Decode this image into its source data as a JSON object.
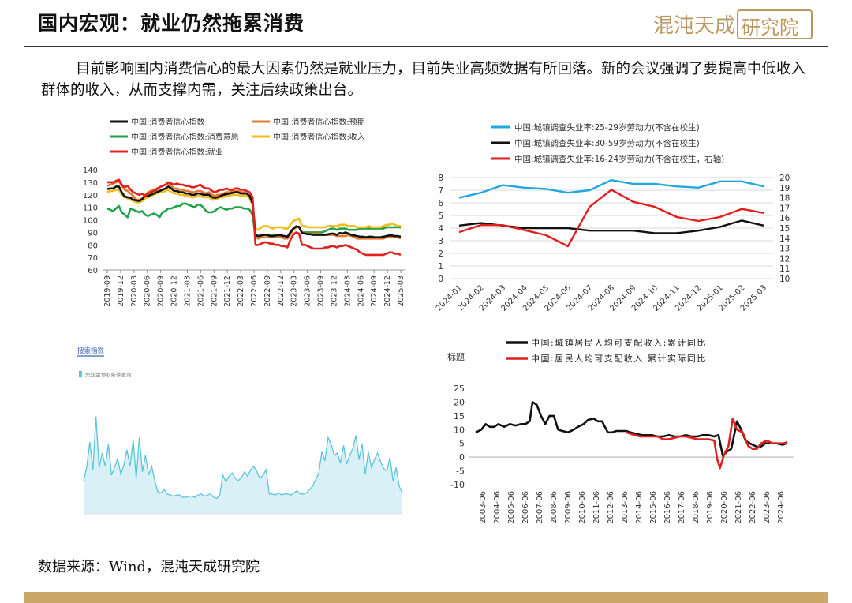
{
  "title": "国内宏观：就业仍然拖累消费",
  "logo": {
    "text_a": "混沌天成",
    "text_b": "研究院"
  },
  "paragraph": "目前影响国内消费信心的最大因素仍然是就业压力，目前失业高频数据有所回落。新的会议强调了要提高中低收入群体的收入，从而支撑内需，关注后续政策出台。",
  "source": "数据来源：Wind，混沌天成研究院",
  "colors": {
    "black": "#111111",
    "orange": "#e47b2c",
    "green": "#22a24a",
    "yellow": "#f0bd1a",
    "red": "#e0201e",
    "blue": "#21a7e0",
    "gold": "#c9a86a",
    "cyan": "#5cc4d8"
  },
  "chart_data": [
    {
      "type": "line",
      "legend": [
        "中国:消费者信心指数",
        "中国:消费者信心指数:预期",
        "中国:消费者信心指数:消费意愿",
        "中国:消费者信心指数:收入",
        "中国:消费者信心指数:就业"
      ],
      "yticks": [
        60,
        70,
        80,
        90,
        100,
        110,
        120,
        130,
        140
      ],
      "ylim": [
        60,
        140
      ],
      "xticks": [
        "2019-09",
        "2019-12",
        "2020-03",
        "2020-06",
        "2020-09",
        "2020-12",
        "2021-03",
        "2021-06",
        "2021-09",
        "2021-12",
        "2022-03",
        "2022-06",
        "2022-09",
        "2022-12",
        "2023-03",
        "2023-06",
        "2023-09",
        "2023-12",
        "2024-03",
        "2024-06",
        "2024-09",
        "2024-12",
        "2025-03"
      ],
      "series": [
        {
          "name": "中国:消费者信心指数",
          "values": [
            124.5,
            125,
            125,
            126.5,
            126.5,
            122,
            118.5,
            118,
            117.5,
            116,
            115.5,
            115,
            116.5,
            119,
            119,
            120,
            121,
            122,
            123,
            124,
            125,
            126.5,
            125,
            123,
            123,
            122,
            122,
            121,
            121,
            120,
            120,
            121,
            121,
            120,
            120,
            120,
            118,
            117.5,
            118,
            119,
            120,
            120.5,
            121,
            121.5,
            122,
            122,
            121,
            121,
            121,
            119,
            113,
            88,
            87,
            87.5,
            88,
            88,
            87,
            87,
            87.5,
            88,
            87.5,
            87,
            86.5,
            90,
            93,
            94.5,
            94.5,
            89.5,
            89,
            88.5,
            88.5,
            88,
            88,
            88,
            88,
            88,
            88.5,
            89,
            89,
            88,
            89.5,
            89,
            90,
            89,
            88,
            87.5,
            87,
            86.5,
            86.5,
            86,
            86.5,
            86.5,
            86,
            86,
            86,
            86.5,
            87,
            87.5,
            87.5,
            87,
            87,
            86.5
          ]
        },
        {
          "name": "中国:消费者信心指数:预期",
          "values": [
            127,
            128,
            129,
            130,
            131,
            127,
            124,
            123,
            121,
            119,
            116,
            116,
            117,
            120,
            122,
            123,
            124,
            125,
            126,
            127,
            128,
            129,
            127,
            125,
            125,
            124,
            124,
            123,
            123,
            122,
            122,
            123,
            123,
            122,
            121,
            122,
            120,
            119,
            120,
            120,
            121,
            122,
            122,
            123,
            123,
            123,
            122,
            122,
            121,
            119,
            114,
            86,
            85,
            86,
            86,
            86,
            86,
            86,
            86,
            86,
            86,
            85,
            85,
            88,
            92,
            94,
            94,
            90,
            89,
            89,
            89,
            89,
            89,
            89,
            88,
            88,
            88,
            88,
            88,
            87,
            87,
            87,
            87,
            88,
            87,
            86,
            85,
            85,
            85,
            85,
            85,
            85,
            85,
            85,
            85,
            85,
            86,
            86,
            86,
            86,
            86,
            85
          ]
        },
        {
          "name": "中国:消费者信心指数:消费意愿",
          "values": [
            109,
            108,
            107,
            109,
            111,
            106,
            104,
            102,
            109,
            108,
            107,
            106,
            107,
            104,
            103,
            104,
            105,
            104,
            102,
            106,
            107,
            109,
            109,
            110,
            111,
            111,
            113,
            113,
            112,
            111,
            110,
            112,
            112,
            110,
            107,
            106,
            106,
            107,
            109,
            110,
            109,
            108,
            109,
            109,
            110,
            110,
            110,
            109,
            109,
            108,
            104,
            87,
            87,
            88,
            88,
            88,
            88,
            88,
            87,
            87,
            87,
            87,
            86,
            89,
            93,
            95,
            94,
            90,
            90,
            90,
            90,
            90,
            90,
            90,
            90,
            91,
            92,
            93,
            93,
            92,
            93,
            93,
            93,
            92,
            92,
            92,
            92,
            93,
            93,
            93,
            93,
            93,
            93,
            93,
            93,
            93,
            94,
            94,
            94,
            94,
            94,
            94
          ]
        },
        {
          "name": "中国:消费者信心指数:收入",
          "values": [
            122,
            123,
            123,
            124,
            124,
            120,
            118,
            117,
            116,
            115,
            114,
            114,
            115,
            117,
            118,
            119,
            120,
            121,
            122,
            122,
            123,
            124,
            122,
            121,
            121,
            120,
            120,
            119,
            119,
            118,
            118,
            119,
            119,
            118,
            118,
            118,
            116,
            116,
            117,
            118,
            118,
            119,
            119,
            120,
            120,
            120,
            119,
            119,
            119,
            117,
            112,
            93,
            92,
            94,
            95,
            95,
            94,
            93,
            94,
            94,
            94,
            93,
            93,
            96,
            99,
            100,
            101,
            95,
            95,
            94,
            94,
            94,
            94,
            94,
            94,
            94,
            95,
            95,
            95,
            95,
            96,
            96,
            96,
            95,
            95,
            95,
            94,
            94,
            94,
            94,
            95,
            94,
            94,
            94,
            94,
            95,
            96,
            96,
            97,
            96,
            95,
            95
          ]
        },
        {
          "name": "中国:消费者信心指数:就业",
          "values": [
            130,
            130,
            130,
            131,
            132,
            128,
            126,
            127,
            124,
            122,
            121,
            120,
            121,
            119,
            121,
            122,
            123,
            124,
            126,
            127,
            128,
            130,
            129,
            128,
            129,
            128,
            128,
            127,
            127,
            126,
            126,
            127,
            128,
            126,
            125,
            125,
            123,
            122,
            123,
            124,
            124,
            125,
            124,
            124,
            125,
            125,
            124,
            124,
            123,
            122,
            118,
            80,
            80,
            81,
            82,
            82,
            81,
            81,
            80,
            80,
            79,
            79,
            78,
            84,
            88,
            90,
            89,
            80,
            80,
            79,
            78,
            77,
            77,
            77,
            77,
            78,
            78,
            79,
            79,
            78,
            79,
            79,
            80,
            79,
            78,
            77,
            76,
            74,
            73,
            72,
            72,
            72,
            72,
            72,
            72,
            72,
            73,
            74,
            74,
            73,
            73,
            72
          ]
        }
      ]
    },
    {
      "type": "line",
      "legend": [
        "中国:城镇调查失业率:25-29岁劳动力(不含在校生)",
        "中国:城镇调查失业率:30-59岁劳动力(不含在校生)",
        "中国:城镇调查失业率:16-24岁劳动力(不含在校生，右轴)"
      ],
      "yticks": [
        0,
        1,
        2,
        3,
        4,
        5,
        6,
        7,
        8
      ],
      "ylim": [
        0,
        8
      ],
      "y2ticks": [
        10,
        11,
        12,
        13,
        14,
        15,
        16,
        17,
        18,
        19,
        20
      ],
      "y2lim": [
        10,
        20
      ],
      "xticks": [
        "2024-01",
        "2024-02",
        "2024-03",
        "2024-04",
        "2024-05",
        "2024-06",
        "2024-07",
        "2024-08",
        "2024-09",
        "2024-10",
        "2024-11",
        "2024-12",
        "2025-01",
        "2025-02",
        "2025-03"
      ],
      "series": [
        {
          "name": "中国:城镇调查失业率:25-29岁劳动力(不含在校生)",
          "values": [
            6.4,
            6.8,
            7.4,
            7.2,
            7.1,
            6.8,
            7,
            7.8,
            7.5,
            7.5,
            7.3,
            7.2,
            7.7,
            7.7,
            7.3
          ]
        },
        {
          "name": "中国:城镇调查失业率:30-59岁劳动力(不含在校生)",
          "values": [
            4.2,
            4.4,
            4.2,
            4.0,
            4.0,
            4.0,
            3.8,
            3.8,
            3.8,
            3.6,
            3.6,
            3.8,
            4.1,
            4.6,
            4.2
          ]
        },
        {
          "name": "中国:城镇调查失业率:16-24岁劳动力(不含在校生)",
          "axis": "right",
          "values": [
            14.6,
            15.3,
            15.3,
            14.8,
            14.3,
            13.2,
            17.1,
            18.8,
            17.6,
            17.1,
            16.1,
            15.7,
            16.1,
            16.9,
            16.5
          ]
        }
      ]
    },
    {
      "type": "line",
      "ylabel": "标题",
      "legend": [
        "中国:城镇居民人均可支配收入:累计同比",
        "中国:居民人均可支配收入:累计实际同比"
      ],
      "yticks": [
        -10,
        -5,
        0,
        5,
        10,
        15,
        20,
        25
      ],
      "ylim": [
        -10,
        25
      ],
      "xticks": [
        "2003-06",
        "2004-06",
        "2005-06",
        "2006-06",
        "2007-06",
        "2008-06",
        "2009-06",
        "2010-06",
        "2011-06",
        "2012-06",
        "2013-06",
        "2014-06",
        "2015-06",
        "2016-06",
        "2017-06",
        "2018-06",
        "2019-06",
        "2020-06",
        "2021-06",
        "2022-06",
        "2023-06",
        "2024-06"
      ],
      "series": [
        {
          "name": "中国:城镇居民人均可支配收入:累计同比",
          "x": [
            2003.0,
            2003.4,
            2003.7,
            2004.0,
            2004.3,
            2004.6,
            2005.0,
            2005.4,
            2005.8,
            2006.2,
            2006.5,
            2006.8,
            2007.0,
            2007.3,
            2007.6,
            2007.9,
            2008.2,
            2008.5,
            2008.8,
            2009.1,
            2009.5,
            2009.9,
            2010.2,
            2010.6,
            2010.9,
            2011.3,
            2011.6,
            2011.9,
            2012.3,
            2012.6,
            2012.9,
            2013.2,
            2013.6,
            2013.9,
            2014.3,
            2014.7,
            2015.0,
            2015.4,
            2015.8,
            2016.2,
            2016.6,
            2017.0,
            2017.4,
            2017.8,
            2018.2,
            2018.6,
            2019.0,
            2019.4,
            2019.8,
            2020.1,
            2020.4,
            2020.7,
            2021.0,
            2021.4,
            2021.7,
            2022.0,
            2022.3,
            2022.7,
            2023.0,
            2023.4,
            2023.8,
            2024.2,
            2024.6,
            2024.9
          ],
          "values": [
            9,
            10,
            12,
            11,
            11,
            12,
            11,
            12,
            11.5,
            12,
            12,
            13,
            20,
            19,
            15,
            12,
            15,
            15,
            10,
            9.5,
            9,
            10,
            11,
            12,
            13.5,
            14,
            13,
            13,
            9,
            9,
            9.5,
            9.5,
            9.5,
            9,
            8.5,
            8,
            8,
            8,
            7.5,
            7.5,
            8,
            7.5,
            7.5,
            8,
            7.5,
            7.5,
            8,
            8,
            7.5,
            8,
            0.5,
            2,
            3,
            13,
            10,
            6,
            5,
            4,
            3.5,
            5,
            5,
            5,
            4.5,
            5
          ]
        },
        {
          "name": "中国:居民人均可支配收入:累计实际同比",
          "x": [
            2013.6,
            2013.9,
            2014.2,
            2014.6,
            2015.0,
            2015.4,
            2015.8,
            2016.2,
            2016.6,
            2017.0,
            2017.4,
            2017.8,
            2018.2,
            2018.6,
            2019.0,
            2019.4,
            2019.8,
            2020.0,
            2020.2,
            2020.5,
            2020.8,
            2021.1,
            2021.4,
            2021.8,
            2022.2,
            2022.5,
            2022.8,
            2023.1,
            2023.5,
            2023.9,
            2024.3,
            2024.7,
            2024.95
          ],
          "values": [
            9,
            8.5,
            8,
            7.5,
            7.5,
            7.5,
            7.5,
            6.5,
            6.5,
            7,
            7.5,
            7.5,
            7,
            6.5,
            6.5,
            6.5,
            6,
            -0.5,
            -4,
            1,
            4,
            14,
            10,
            9,
            4,
            3,
            3,
            5,
            6,
            5,
            5,
            5,
            5.5
          ]
        }
      ]
    },
    {
      "type": "area",
      "title": "搜索指数",
      "legend": [
        "失业金领取条件查询"
      ],
      "series": [
        {
          "name": "失业金领取条件查询",
          "values": [
            3000,
            4200,
            6500,
            4000,
            8800,
            4200,
            5500,
            4300,
            6300,
            3500,
            4200,
            5000,
            3600,
            4400,
            5800,
            4300,
            6700,
            3200,
            6900,
            3800,
            5300,
            3500,
            4300,
            3000,
            2000,
            1900,
            2200,
            1800,
            1700,
            1600,
            1700,
            1700,
            1500,
            1500,
            1600,
            1600,
            1500,
            1700,
            1800,
            1600,
            1700,
            1800,
            1500,
            1400,
            1700,
            3500,
            2900,
            3400,
            3700,
            3200,
            3000,
            3300,
            3800,
            3400,
            4000,
            4300,
            3800,
            3200,
            3500,
            4000,
            1800,
            1800,
            1700,
            1900,
            1700,
            1800,
            1800,
            1700,
            1900,
            2100,
            1800,
            1800,
            1900,
            2200,
            2500,
            3100,
            3700,
            5600,
            4800,
            6900,
            6300,
            5300,
            5500,
            4600,
            6200,
            4500,
            5300,
            5900,
            7100,
            4900,
            6300,
            3600,
            5600,
            4200,
            4900,
            5500,
            4700,
            4100,
            3900,
            5100,
            3000,
            4200,
            2500,
            1900
          ]
        }
      ]
    }
  ]
}
